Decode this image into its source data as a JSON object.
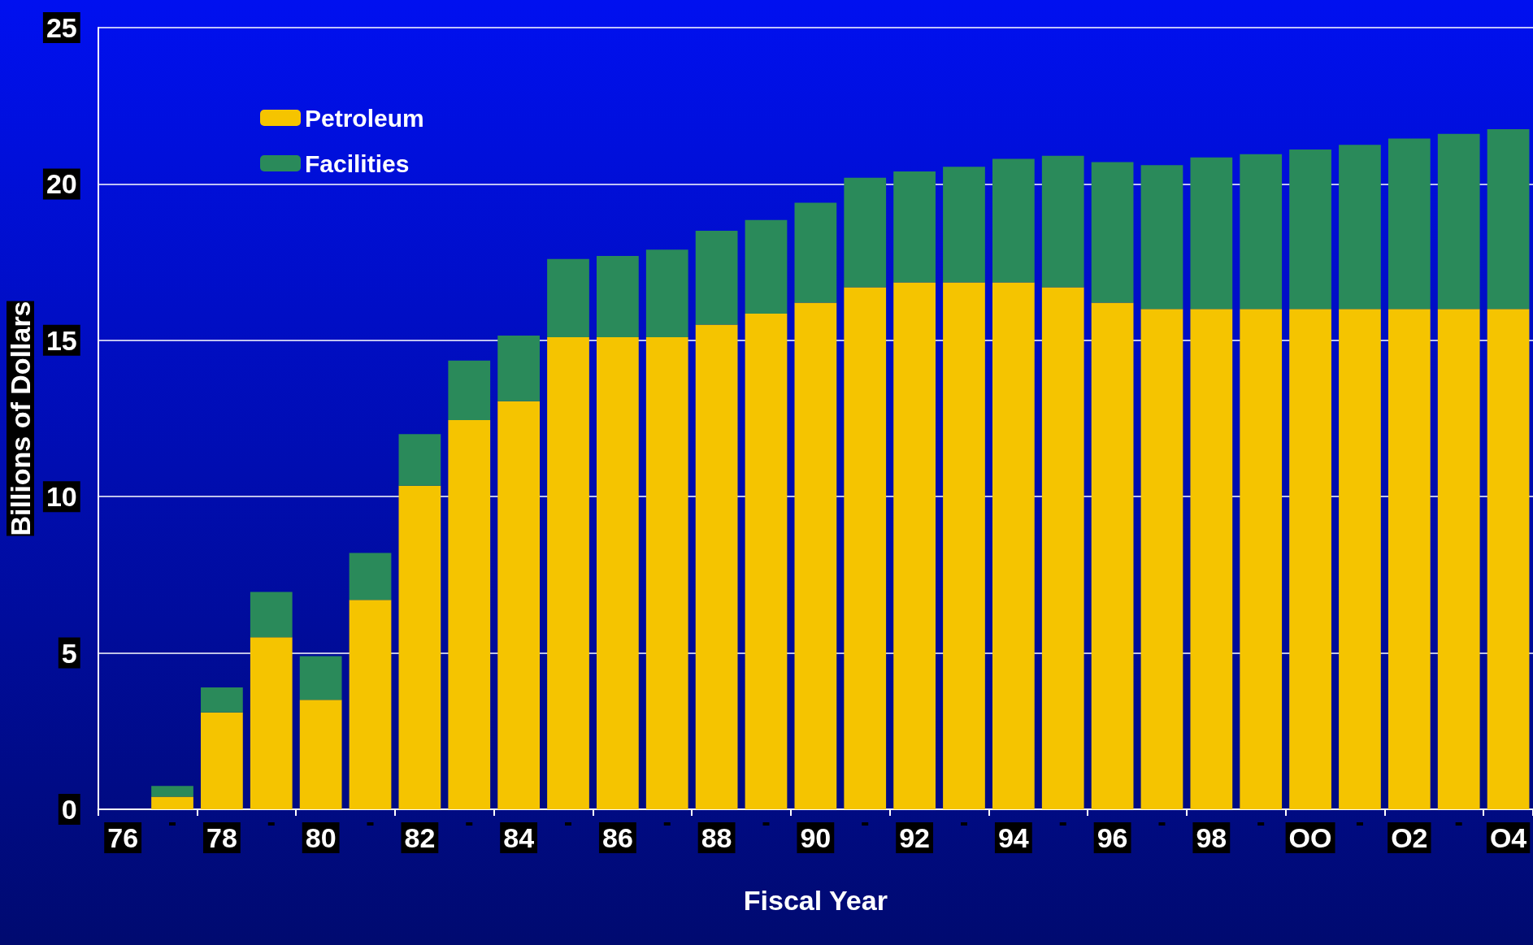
{
  "chart_data": {
    "type": "bar",
    "stacked": true,
    "xlabel": "Fiscal Year",
    "ylabel": "Billions of Dollars",
    "categories": [
      "76",
      null,
      "78",
      null,
      "80",
      null,
      "82",
      null,
      "84",
      null,
      "86",
      null,
      "88",
      null,
      "90",
      null,
      "92",
      null,
      "94",
      null,
      "96",
      null,
      "98",
      null,
      "OO",
      null,
      "O2",
      null,
      "O4"
    ],
    "series": [
      {
        "name": "Petroleum",
        "color": "#f5c400",
        "values": [
          null,
          0.4,
          3.1,
          5.5,
          3.5,
          6.7,
          10.35,
          12.45,
          13.05,
          15.1,
          15.1,
          15.1,
          15.5,
          15.85,
          16.2,
          16.7,
          16.85,
          16.85,
          16.85,
          16.7,
          16.2,
          16.0,
          16.0,
          16.0,
          16.0,
          16.0,
          16.0,
          16.0,
          16.0
        ]
      },
      {
        "name": "Facilities",
        "color": "#2a8a5a",
        "values": [
          null,
          0.35,
          0.8,
          1.45,
          1.4,
          1.5,
          1.65,
          1.9,
          2.1,
          2.5,
          2.6,
          2.8,
          3.0,
          3.0,
          3.2,
          3.5,
          3.55,
          3.7,
          3.95,
          4.2,
          4.5,
          4.6,
          4.85,
          4.95,
          5.1,
          5.25,
          5.45,
          5.6,
          5.75
        ]
      }
    ],
    "ylim": [
      0,
      25
    ],
    "yticks": [
      0,
      5,
      10,
      15,
      20,
      25
    ],
    "grid": "y",
    "legend": "top left"
  }
}
